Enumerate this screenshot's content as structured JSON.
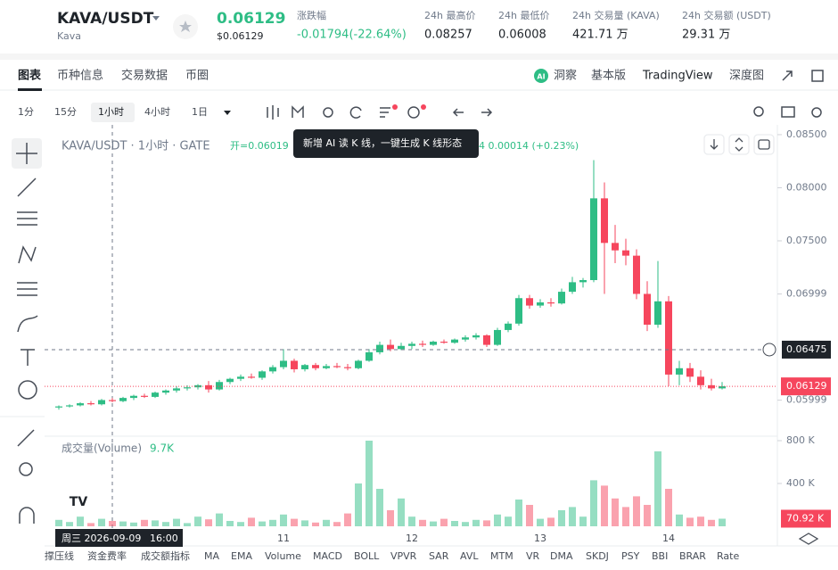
{
  "header": {
    "pair": "KAVA/USDT",
    "coin": "Kava",
    "price": "0.06129",
    "price_usd": "$0.06129",
    "stats": [
      {
        "label": "涨跌幅",
        "value": "-0.01794(-22.64%)"
      },
      {
        "label": "24h 最高价",
        "value": "0.08257"
      },
      {
        "label": "24h 最低价",
        "value": "0.06008"
      },
      {
        "label": "24h 交易量 (KAVA)",
        "value": "421.71 万"
      },
      {
        "label": "24h 交易额 (USDT)",
        "value": "29.31 万"
      }
    ]
  },
  "tabs": [
    "图表",
    "币种信息",
    "交易数据",
    "币圈"
  ],
  "right_tabs": [
    "洞察",
    "基本版",
    "TradingView",
    "深度图"
  ],
  "intervals": [
    "1分",
    "15分",
    "1小时",
    "4小时",
    "1日"
  ],
  "legend": {
    "symbol": "KAVA/USDT · 1小时 · GATE",
    "open": "开=0.06019",
    "change": "4  0.00014 (+0.23%)",
    "tooltip": "新增 AI 读 K 线，一键生成 K 线形态",
    "volume_title": "成交量(Volume)",
    "volume_value": "9.7K"
  },
  "crosshair": {
    "date": "周三 2026-09-09",
    "time": "16:00"
  },
  "indicators": [
    "撑压线",
    "资金费率",
    "成交额指标",
    "MA",
    "EMA",
    "Volume",
    "MACD",
    "BOLL",
    "VPVR",
    "SAR",
    "AVL",
    "MTM",
    "VR",
    "DMA",
    "SKDJ",
    "PSY",
    "BBI",
    "BRAR",
    "Rate"
  ],
  "chart_data": {
    "type": "candlestick",
    "up_color": "#2ebd85",
    "down_color": "#f6465d",
    "ylim": [
      0.05668,
      0.08592
    ],
    "yticks": [
      {
        "value": 0.085,
        "label": "0.08500"
      },
      {
        "value": 0.08,
        "label": "0.08000"
      },
      {
        "value": 0.075,
        "label": "0.07500"
      },
      0.06999,
      0.05999
    ],
    "x_labels": [
      "11",
      "12",
      "13",
      "14"
    ],
    "crosshair_price": {
      "value": 0.06475,
      "label": "0.06475"
    },
    "last_price": {
      "value": 0.06129,
      "label": "0.06129"
    },
    "volume_ylim": [
      0,
      850000
    ],
    "volume_yticks": [
      {
        "value": 800000,
        "label": "800 K"
      },
      {
        "value": 400000,
        "label": "400 K"
      }
    ],
    "last_volume": {
      "value": 70920,
      "label": "70.92 K"
    },
    "candles": [
      [
        0.0593,
        0.0595,
        0.0591,
        0.0594
      ],
      [
        0.0594,
        0.0596,
        0.0593,
        0.0595
      ],
      [
        0.0595,
        0.0598,
        0.0594,
        0.0597
      ],
      [
        0.0597,
        0.0599,
        0.0595,
        0.0596
      ],
      [
        0.0596,
        0.0601,
        0.0595,
        0.06
      ],
      [
        0.06,
        0.0602,
        0.0598,
        0.0599
      ],
      [
        0.0599,
        0.0603,
        0.0598,
        0.0602
      ],
      [
        0.0602,
        0.0605,
        0.06,
        0.0604
      ],
      [
        0.0604,
        0.0606,
        0.0602,
        0.0603
      ],
      [
        0.0603,
        0.0608,
        0.0602,
        0.0607
      ],
      [
        0.0607,
        0.061,
        0.0605,
        0.0609
      ],
      [
        0.0609,
        0.0613,
        0.0607,
        0.0611
      ],
      [
        0.0611,
        0.0614,
        0.0609,
        0.0612
      ],
      [
        0.0612,
        0.0615,
        0.061,
        0.0614
      ],
      [
        0.0614,
        0.0618,
        0.0607,
        0.061
      ],
      [
        0.061,
        0.0619,
        0.0609,
        0.0617
      ],
      [
        0.0617,
        0.0621,
        0.0615,
        0.062
      ],
      [
        0.062,
        0.0624,
        0.0618,
        0.0622
      ],
      [
        0.0622,
        0.0625,
        0.062,
        0.0621
      ],
      [
        0.0621,
        0.0628,
        0.0619,
        0.0627
      ],
      [
        0.0627,
        0.0633,
        0.0625,
        0.0631
      ],
      [
        0.0631,
        0.0648,
        0.0629,
        0.0637
      ],
      [
        0.0637,
        0.0639,
        0.0626,
        0.0629
      ],
      [
        0.0629,
        0.0634,
        0.0627,
        0.0633
      ],
      [
        0.0633,
        0.0635,
        0.0628,
        0.063
      ],
      [
        0.063,
        0.0634,
        0.0629,
        0.0632
      ],
      [
        0.0632,
        0.0635,
        0.063,
        0.0631
      ],
      [
        0.0631,
        0.0634,
        0.0628,
        0.063
      ],
      [
        0.063,
        0.0638,
        0.0629,
        0.0637
      ],
      [
        0.0637,
        0.0648,
        0.0636,
        0.0645
      ],
      [
        0.0645,
        0.0655,
        0.0643,
        0.0652
      ],
      [
        0.0652,
        0.0657,
        0.0646,
        0.0648
      ],
      [
        0.0648,
        0.0654,
        0.0647,
        0.0651
      ],
      [
        0.0651,
        0.0655,
        0.0648,
        0.0653
      ],
      [
        0.0653,
        0.0656,
        0.065,
        0.0652
      ],
      [
        0.0652,
        0.0656,
        0.0651,
        0.0655
      ],
      [
        0.0655,
        0.0657,
        0.0653,
        0.0654
      ],
      [
        0.0654,
        0.0658,
        0.0653,
        0.0657
      ],
      [
        0.0657,
        0.0661,
        0.0655,
        0.0659
      ],
      [
        0.0659,
        0.0663,
        0.0657,
        0.0661
      ],
      [
        0.0661,
        0.0662,
        0.065,
        0.0652
      ],
      [
        0.0652,
        0.0668,
        0.0651,
        0.0666
      ],
      [
        0.0666,
        0.0674,
        0.0664,
        0.0672
      ],
      [
        0.0672,
        0.0699,
        0.067,
        0.0696
      ],
      [
        0.0696,
        0.0699,
        0.0686,
        0.0689
      ],
      [
        0.0689,
        0.0695,
        0.0687,
        0.0692
      ],
      [
        0.0692,
        0.0696,
        0.0688,
        0.0691
      ],
      [
        0.0691,
        0.0705,
        0.069,
        0.0702
      ],
      [
        0.0702,
        0.0716,
        0.07,
        0.0711
      ],
      [
        0.0711,
        0.0715,
        0.0706,
        0.0713
      ],
      [
        0.0713,
        0.0826,
        0.0711,
        0.079
      ],
      [
        0.079,
        0.0805,
        0.07,
        0.0748
      ],
      [
        0.0748,
        0.0765,
        0.0729,
        0.0741
      ],
      [
        0.0741,
        0.0752,
        0.0727,
        0.0736
      ],
      [
        0.0736,
        0.0742,
        0.0695,
        0.07
      ],
      [
        0.07,
        0.0712,
        0.0665,
        0.0671
      ],
      [
        0.0671,
        0.0731,
        0.0668,
        0.0693
      ],
      [
        0.0693,
        0.0698,
        0.0613,
        0.0624
      ],
      [
        0.0624,
        0.0637,
        0.0614,
        0.063
      ],
      [
        0.063,
        0.0635,
        0.0617,
        0.0622
      ],
      [
        0.0622,
        0.0628,
        0.061,
        0.0614
      ],
      [
        0.0614,
        0.062,
        0.0609,
        0.0611
      ],
      [
        0.0611,
        0.0617,
        0.061,
        0.0613
      ]
    ],
    "volume": [
      60000,
      40000,
      90000,
      30000,
      70000,
      50000,
      45000,
      35000,
      60000,
      55000,
      40000,
      70000,
      30000,
      90000,
      65000,
      120000,
      50000,
      40000,
      80000,
      45000,
      60000,
      110000,
      70000,
      55000,
      35000,
      60000,
      40000,
      120000,
      400000,
      800000,
      350000,
      150000,
      260000,
      90000,
      60000,
      45000,
      70000,
      50000,
      40000,
      60000,
      55000,
      110000,
      90000,
      250000,
      200000,
      70000,
      80000,
      150000,
      180000,
      90000,
      430000,
      380000,
      260000,
      180000,
      280000,
      200000,
      700000,
      350000,
      110000,
      80000,
      90000,
      60000,
      70920
    ]
  }
}
